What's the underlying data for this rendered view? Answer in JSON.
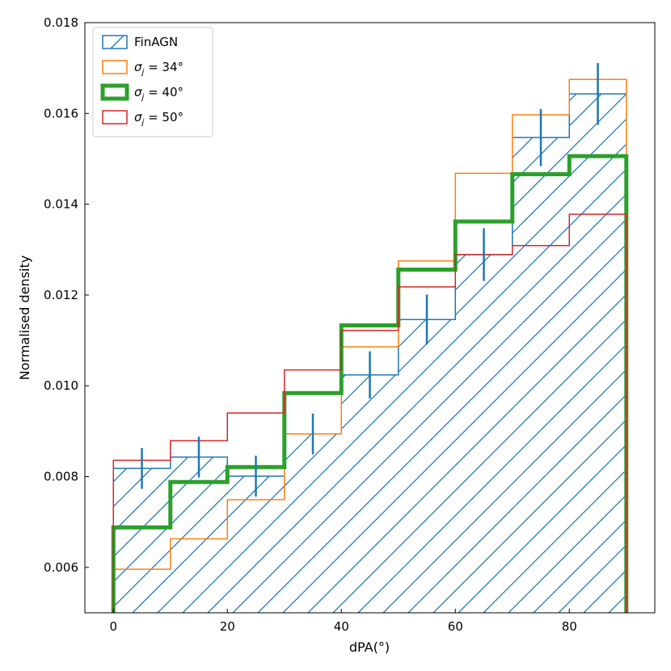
{
  "chart_data": {
    "type": "histogram",
    "xlabel": "dPA(°)",
    "ylabel": "Normalised density",
    "xlim": [
      -5,
      95
    ],
    "ylim": [
      0.005,
      0.018
    ],
    "bin_edges": [
      0,
      10,
      20,
      30,
      40,
      50,
      60,
      70,
      80,
      90
    ],
    "x_ticks": [
      0,
      20,
      40,
      60,
      80
    ],
    "x_tick_labels": [
      "0",
      "20",
      "40",
      "60",
      "80"
    ],
    "y_ticks": [
      0.006,
      0.008,
      0.01,
      0.012,
      0.014,
      0.016,
      0.018
    ],
    "y_tick_labels": [
      "0.006",
      "0.008",
      "0.010",
      "0.012",
      "0.014",
      "0.016",
      "0.018"
    ],
    "legend_position": "top-left",
    "series": [
      {
        "name": "FinAGN",
        "style": "hatched",
        "color": "#1f77b4",
        "values": [
          0.00818,
          0.00843,
          0.00801,
          0.00894,
          0.01024,
          0.01146,
          0.01289,
          0.01547,
          0.01643
        ],
        "error": [
          0.00045,
          0.00045,
          0.00045,
          0.00045,
          0.00052,
          0.00055,
          0.00058,
          0.00063,
          0.00068
        ]
      },
      {
        "name": "σ",
        "subscript": "j",
        "suffix": " = 34°",
        "color": "#ff7f0e",
        "values": [
          0.00596,
          0.00663,
          0.00749,
          0.00894,
          0.01086,
          0.01275,
          0.01468,
          0.01597,
          0.01675
        ]
      },
      {
        "name": "σ",
        "subscript": "j",
        "suffix": " = 40°",
        "color": "#2ca02c",
        "bold": true,
        "values": [
          0.00688,
          0.00788,
          0.00821,
          0.00984,
          0.01133,
          0.01256,
          0.01362,
          0.01466,
          0.01506
        ]
      },
      {
        "name": "σ",
        "subscript": "j",
        "suffix": " = 50°",
        "color": "#d62728",
        "values": [
          0.00836,
          0.00879,
          0.0094,
          0.01035,
          0.01122,
          0.01218,
          0.01289,
          0.01309,
          0.01378
        ]
      }
    ]
  }
}
